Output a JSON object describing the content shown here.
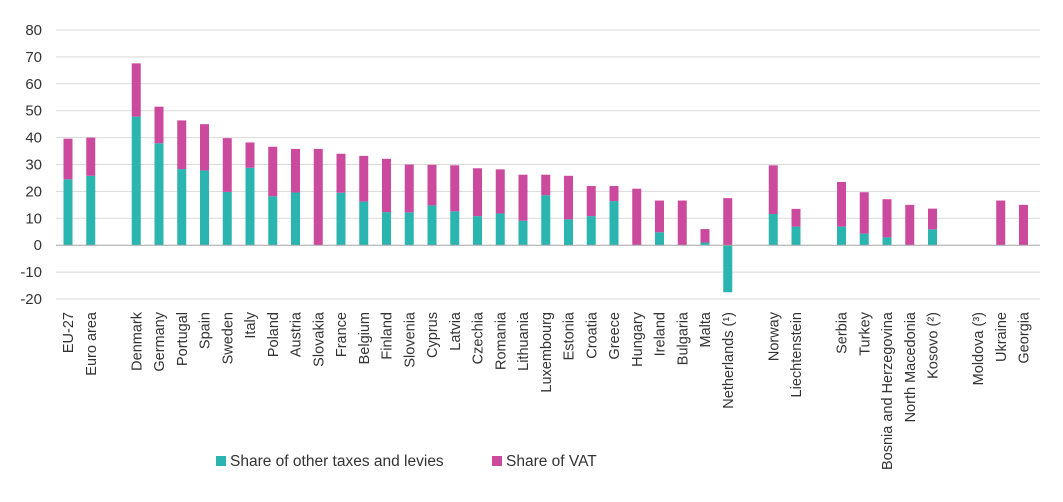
{
  "chart_data": {
    "type": "bar",
    "stacked": true,
    "title": "",
    "xlabel": "",
    "ylabel": "",
    "ylim": [
      -20,
      80
    ],
    "yticks": [
      80,
      70,
      60,
      50,
      40,
      30,
      20,
      10,
      0,
      -10,
      -20
    ],
    "grid": true,
    "legend_position": "bottom",
    "groups": [
      [
        "EU-27",
        "Euro area"
      ],
      [
        "Denmark",
        "Germany",
        "Portugal",
        "Spain",
        "Sweden",
        "Italy",
        "Poland",
        "Austria",
        "Slovakia",
        "France",
        "Belgium",
        "Finland",
        "Slovenia",
        "Cyprus",
        "Latvia",
        "Czechia",
        "Romania",
        "Lithuania",
        "Luxembourg",
        "Estonia",
        "Croatia",
        "Greece",
        "Hungary",
        "Ireland",
        "Bulgaria",
        "Malta",
        "Netherlands (¹)"
      ],
      [
        "Norway",
        "Liechtenstein"
      ],
      [
        "Serbia",
        "Turkey",
        "Bosnia and Herzegovina",
        "North Macedonia",
        "Kosovo (²)"
      ],
      [
        "Moldova (³)",
        "Ukraine",
        "Georgia"
      ]
    ],
    "categories": [
      "EU-27",
      "Euro area",
      "Denmark",
      "Germany",
      "Portugal",
      "Spain",
      "Sweden",
      "Italy",
      "Poland",
      "Austria",
      "Slovakia",
      "France",
      "Belgium",
      "Finland",
      "Slovenia",
      "Cyprus",
      "Latvia",
      "Czechia",
      "Romania",
      "Lithuania",
      "Luxembourg",
      "Estonia",
      "Croatia",
      "Greece",
      "Hungary",
      "Ireland",
      "Bulgaria",
      "Malta",
      "Netherlands (¹)",
      "Norway",
      "Liechtenstein",
      "Serbia",
      "Turkey",
      "Bosnia and Herzegovina",
      "North Macedonia",
      "Kosovo (²)",
      "Moldova (³)",
      "Ukraine",
      "Georgia"
    ],
    "series": [
      {
        "name": "Share of other taxes and levies",
        "color": "#2bb5b0",
        "values": [
          24.5,
          25.8,
          47.8,
          37.9,
          28.3,
          27.8,
          19.8,
          28.8,
          18.2,
          19.6,
          0,
          19.5,
          16.2,
          12.3,
          12.2,
          14.8,
          12.6,
          10.8,
          11.8,
          9.1,
          18.6,
          9.6,
          10.8,
          16.4,
          0,
          4.8,
          0,
          1.0,
          -17.5,
          11.6,
          6.9,
          6.9,
          4.3,
          2.9,
          0,
          5.9,
          0,
          0,
          0
        ]
      },
      {
        "name": "Share of VAT",
        "color": "#cc4a9e",
        "values": [
          15.1,
          14.2,
          19.8,
          13.6,
          18.1,
          17.2,
          20.0,
          9.4,
          18.4,
          16.2,
          35.8,
          14.5,
          17.0,
          19.8,
          17.8,
          15.1,
          17.1,
          17.8,
          16.4,
          17.1,
          7.6,
          16.2,
          11.2,
          5.6,
          21.0,
          11.8,
          16.6,
          5.0,
          17.5,
          18.1,
          6.6,
          16.6,
          15.4,
          14.2,
          15.0,
          7.7,
          0,
          16.6,
          15.0
        ]
      }
    ]
  }
}
